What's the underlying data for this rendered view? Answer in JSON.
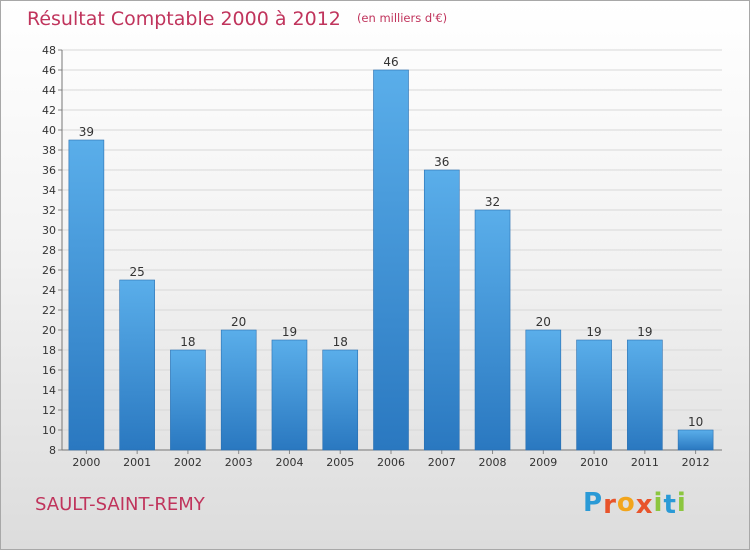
{
  "chart_data": {
    "type": "bar",
    "title": "Résultat Comptable 2000 à 2012",
    "subtitle": "(en milliers d'€)",
    "categories": [
      "2000",
      "2001",
      "2002",
      "2003",
      "2004",
      "2005",
      "2006",
      "2007",
      "2008",
      "2009",
      "2010",
      "2011",
      "2012"
    ],
    "values": [
      39,
      25,
      18,
      20,
      19,
      18,
      46,
      36,
      32,
      20,
      19,
      19,
      10
    ],
    "ylim": [
      8,
      48
    ],
    "yticks": [
      8,
      10,
      12,
      14,
      16,
      18,
      20,
      22,
      24,
      26,
      28,
      30,
      32,
      34,
      36,
      38,
      40,
      42,
      44,
      46,
      48
    ],
    "grid": true,
    "bar_color": "#3a8fd8"
  },
  "footer": {
    "commune": "SAULT-SAINT-REMY",
    "logo_text": "Proxiti",
    "logo_colors": [
      "#2a9ad6",
      "#e8542b",
      "#f2a51c",
      "#e8542b",
      "#8cc63f",
      "#2a9ad6",
      "#8cc63f"
    ]
  },
  "colors": {
    "title": "#c0345c",
    "grid": "#d8d8d8"
  }
}
